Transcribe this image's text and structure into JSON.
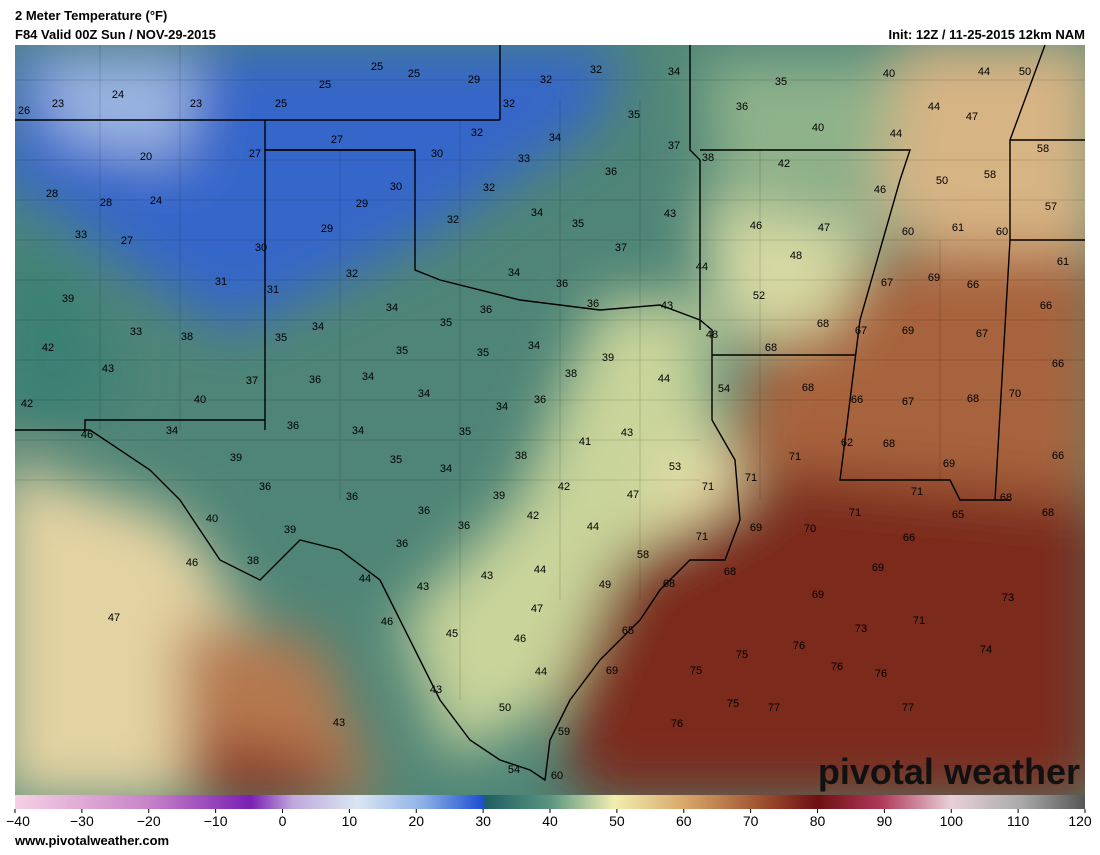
{
  "header": {
    "title": "2 Meter Temperature (°F)",
    "valid": "F84 Valid 00Z Sun / NOV-29-2015",
    "init": "Init: 12Z / 11-25-2015 12km NAM"
  },
  "footer": {
    "url": "www.pivotalweather.com",
    "logo": "pivotal weather"
  },
  "colorbar": {
    "lim": [
      -40,
      120
    ],
    "ticks": [
      {
        "value": -40,
        "label": "−40"
      },
      {
        "value": -30,
        "label": "−30"
      },
      {
        "value": -20,
        "label": "−20"
      },
      {
        "value": -10,
        "label": "−10"
      },
      0,
      10,
      20,
      30,
      40,
      50,
      60,
      70,
      80,
      90,
      100,
      110,
      120
    ]
  },
  "map_labels": [
    26,
    23,
    24,
    23,
    25,
    25,
    25,
    25,
    29,
    32,
    32,
    34,
    35,
    40,
    44,
    50,
    32,
    35,
    36,
    44,
    47,
    40,
    27,
    32,
    34,
    37,
    44,
    20,
    27,
    30,
    33,
    38,
    42,
    58,
    36,
    46,
    50,
    58,
    28,
    28,
    24,
    30,
    32,
    29,
    34,
    43,
    57,
    33,
    27,
    32,
    35,
    46,
    47,
    60,
    61,
    60,
    29,
    30,
    37,
    48,
    61,
    39,
    31,
    32,
    34,
    44,
    36,
    69,
    66,
    67,
    31,
    34,
    36,
    36,
    43,
    52,
    66,
    33,
    38,
    34,
    35,
    68,
    67,
    69,
    67,
    42,
    35,
    35,
    35,
    34,
    48,
    68,
    39,
    43,
    36,
    34,
    38,
    44,
    54,
    68,
    66,
    70,
    37,
    40,
    42,
    34,
    36,
    34,
    66,
    67,
    68,
    46,
    34,
    36,
    34,
    35,
    41,
    43,
    62,
    68,
    71,
    39,
    35,
    38,
    34,
    53,
    69,
    66,
    36,
    36,
    42,
    39,
    47,
    71,
    71,
    71,
    68,
    40,
    36,
    42,
    36,
    44,
    71,
    65,
    68,
    39,
    69,
    70,
    36,
    71,
    66,
    46,
    38,
    43,
    44,
    58,
    68,
    69,
    44,
    43,
    49,
    68,
    69,
    73,
    47,
    46,
    47,
    71,
    73,
    45,
    65,
    76,
    46,
    74,
    75,
    69,
    75,
    76,
    76,
    44,
    43,
    50,
    75,
    77,
    77,
    43,
    76,
    59,
    54,
    60
  ]
}
